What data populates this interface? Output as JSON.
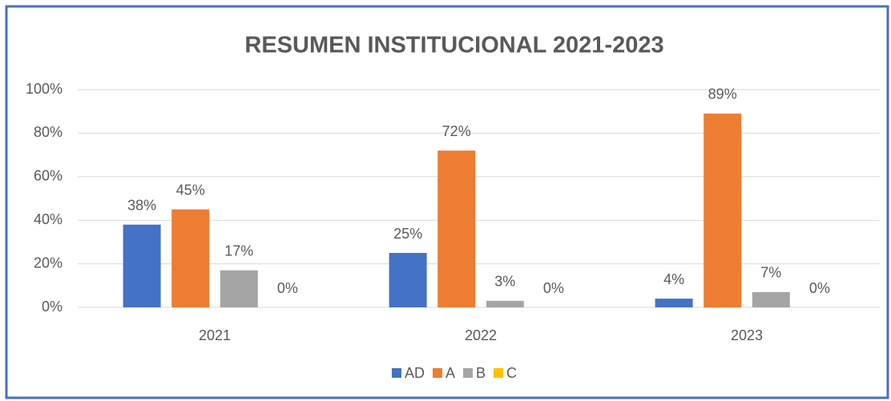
{
  "chart_data": {
    "type": "bar",
    "title": "RESUMEN INSTITUCIONAL 2021-2023",
    "categories": [
      "2021",
      "2022",
      "2023"
    ],
    "series": [
      {
        "name": "AD",
        "color": "#4472c4",
        "values": [
          38,
          25,
          4
        ],
        "value_labels": [
          "38%",
          "25%",
          "4%"
        ]
      },
      {
        "name": "A",
        "color": "#ed7d31",
        "values": [
          45,
          72,
          89
        ],
        "value_labels": [
          "45%",
          "72%",
          "89%"
        ]
      },
      {
        "name": "B",
        "color": "#a5a5a5",
        "values": [
          17,
          3,
          7
        ],
        "value_labels": [
          "17%",
          "3%",
          "7%"
        ]
      },
      {
        "name": "C",
        "color": "#ffc000",
        "values": [
          0,
          0,
          0
        ],
        "value_labels": [
          "0%",
          "0%",
          "0%"
        ]
      }
    ],
    "ylim": [
      0,
      100
    ],
    "yticks": [
      {
        "value": 0,
        "label": "0%"
      },
      {
        "value": 20,
        "label": "20%"
      },
      {
        "value": 40,
        "label": "40%"
      },
      {
        "value": 60,
        "label": "60%"
      },
      {
        "value": 80,
        "label": "80%"
      },
      {
        "value": 100,
        "label": "100%"
      }
    ],
    "grid": true,
    "legend": "bottom"
  }
}
